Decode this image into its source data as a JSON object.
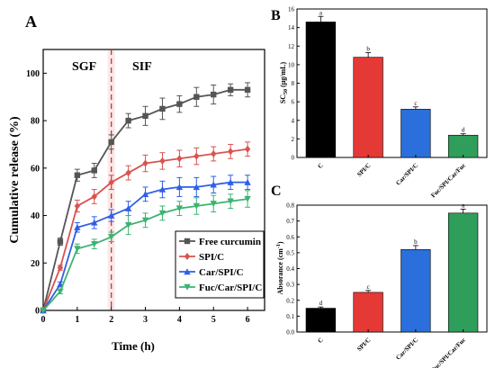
{
  "chart_data": [
    {
      "type": "line",
      "panel_label": "A",
      "xlabel": "Time (h)",
      "ylabel": "Cumulative release (%)",
      "xlim": [
        0,
        6.5
      ],
      "ylim": [
        0,
        110
      ],
      "xticks": [
        0,
        1,
        2,
        3,
        4,
        5,
        6
      ],
      "yticks": [
        0,
        20,
        40,
        60,
        80,
        100
      ],
      "annotations": [
        "SGF",
        "SIF"
      ],
      "phase_boundary_x": 2,
      "legend_position": "bottom-right",
      "series": [
        {
          "name": "Free curcumin",
          "color": "#555555",
          "marker": "square",
          "x": [
            0,
            0.5,
            1,
            1.5,
            2,
            2.5,
            3,
            3.5,
            4,
            4.5,
            5,
            5.5,
            6
          ],
          "y": [
            0,
            29,
            57,
            59,
            71,
            80,
            82,
            85,
            87,
            90,
            91,
            93,
            93
          ],
          "err": [
            0,
            1.5,
            2.5,
            3,
            3,
            3,
            4,
            4.5,
            3.5,
            4,
            4,
            2.5,
            3
          ]
        },
        {
          "name": "SPI/C",
          "color": "#d9534f",
          "marker": "diamond",
          "x": [
            0,
            0.5,
            1,
            1.5,
            2,
            2.5,
            3,
            3.5,
            4,
            4.5,
            5,
            5.5,
            6
          ],
          "y": [
            0,
            18,
            44,
            48,
            54,
            58,
            62,
            63,
            64,
            65,
            66,
            67,
            68
          ],
          "err": [
            0,
            1,
            2.5,
            3,
            3,
            3,
            3.5,
            3.5,
            3.5,
            3.5,
            3,
            3,
            3
          ]
        },
        {
          "name": "Car/SPI/C",
          "color": "#2e5fe8",
          "marker": "triangle-up",
          "x": [
            0,
            0.5,
            1,
            1.5,
            2,
            2.5,
            3,
            3.5,
            4,
            4.5,
            5,
            5.5,
            6
          ],
          "y": [
            0,
            11,
            35,
            37,
            40,
            43,
            49,
            51,
            52,
            52,
            53,
            54,
            54
          ],
          "err": [
            0,
            1,
            2,
            2.5,
            2.5,
            3,
            3,
            3.5,
            4,
            4,
            3.5,
            3,
            3
          ]
        },
        {
          "name": "Fuc/Car/SPI/C",
          "color": "#3cb371",
          "marker": "triangle-down",
          "x": [
            0,
            0.5,
            1,
            1.5,
            2,
            2.5,
            3,
            3.5,
            4,
            4.5,
            5,
            5.5,
            6
          ],
          "y": [
            0,
            8,
            26,
            28,
            31,
            36,
            38,
            41,
            43,
            44,
            45,
            46,
            47
          ],
          "err": [
            0,
            1,
            2,
            2,
            2,
            4,
            3,
            3,
            3,
            3.5,
            3.5,
            3,
            3.5
          ]
        }
      ]
    },
    {
      "type": "bar",
      "panel_label": "B",
      "ylabel": "SC50 (μg/mL)",
      "ylabel_main": "SC",
      "ylabel_sub": "50",
      "ylabel_unit": " (μg/mL)",
      "ylim": [
        0,
        16
      ],
      "yticks": [
        0,
        2,
        4,
        6,
        8,
        10,
        12,
        14,
        16
      ],
      "categories": [
        "C",
        "SPI/C",
        "Car/SPI/C",
        "Fuc/SPI/Car/Fuc"
      ],
      "values": [
        14.6,
        10.8,
        5.2,
        2.4
      ],
      "errors": [
        0.6,
        0.5,
        0.25,
        0.15
      ],
      "letters": [
        "a",
        "b",
        "c",
        "d"
      ],
      "colors": [
        "#000000",
        "#e53935",
        "#2a6fdb",
        "#2e9e5a"
      ]
    },
    {
      "type": "bar",
      "panel_label": "C",
      "ylabel": "Absorance (cm-1)",
      "ylabel_main": "Absorance (cm",
      "ylabel_sup": "-1",
      "ylabel_end": ")",
      "ylim": [
        0,
        0.8
      ],
      "yticks": [
        "0.0",
        "0.1",
        "0.2",
        "0.3",
        "0.4",
        "0.5",
        "0.6",
        "0.7",
        "0.8"
      ],
      "categories": [
        "C",
        "SPI/C",
        "Car/SPI/C",
        "Fuc/SPI/Car/Fuc"
      ],
      "values": [
        0.15,
        0.25,
        0.52,
        0.75
      ],
      "errors": [
        0.008,
        0.012,
        0.025,
        0.025
      ],
      "letters": [
        "d",
        "c",
        "b",
        "a"
      ],
      "colors": [
        "#000000",
        "#e53935",
        "#2a6fdb",
        "#2e9e5a"
      ]
    }
  ]
}
